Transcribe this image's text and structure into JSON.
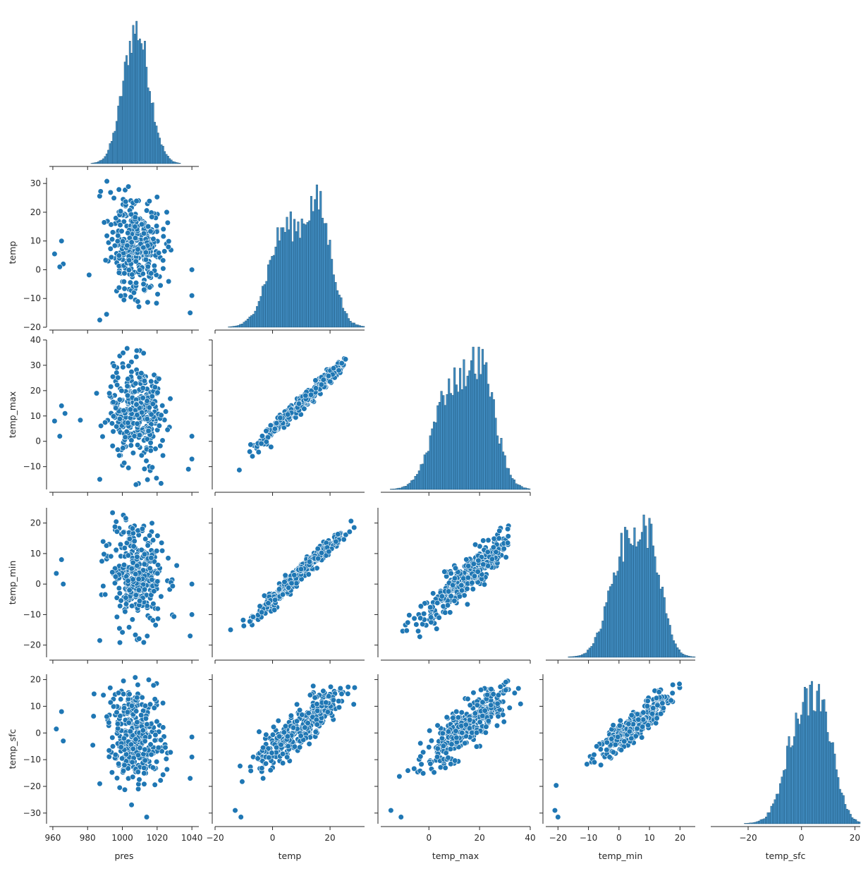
{
  "chart_data": {
    "type": "pairplot",
    "layout": "lower-triangle (corner)",
    "variables": [
      "pres",
      "temp",
      "temp_max",
      "temp_min",
      "temp_sfc"
    ],
    "color": "#1f77b4",
    "diagonal": "histogram",
    "offdiagonal": "scatter",
    "axes": {
      "pres": {
        "range": [
          958,
          1044
        ],
        "ticks": [
          960,
          980,
          1000,
          1020,
          1040
        ],
        "label": "pres"
      },
      "temp": {
        "range": [
          -20,
          32
        ],
        "ticks": [
          -20,
          -10,
          0,
          10,
          20,
          30
        ],
        "x_ticks": [
          -20,
          0,
          20
        ],
        "label": "temp"
      },
      "temp_max": {
        "range": [
          -19,
          40
        ],
        "ticks": [
          -10,
          0,
          10,
          20,
          30,
          40
        ],
        "x_ticks": [
          0,
          20,
          40
        ],
        "label": "temp_max"
      },
      "temp_min": {
        "range": [
          -24,
          25
        ],
        "ticks": [
          -20,
          -10,
          0,
          10,
          20
        ],
        "x_ticks": [
          -20,
          -10,
          0,
          10,
          20
        ],
        "label": "temp_min"
      },
      "temp_sfc": {
        "range": [
          -34,
          22
        ],
        "ticks": [
          -30,
          -20,
          -10,
          0,
          10,
          20
        ],
        "x_ticks": [
          -20,
          0,
          20
        ],
        "label": "temp_sfc"
      }
    },
    "distributions": {
      "pres": {
        "components": [
          {
            "mean": 1008,
            "sd": 7.5,
            "weight": 1
          }
        ],
        "bins": 90
      },
      "temp": {
        "components": [
          {
            "mean": 4,
            "sd": 5.5,
            "weight": 0.45
          },
          {
            "mean": 16,
            "sd": 4.5,
            "weight": 0.45
          },
          {
            "mean": 10,
            "sd": 9,
            "weight": 0.1
          }
        ],
        "bins": 80
      },
      "temp_max": {
        "components": [
          {
            "mean": 8,
            "sd": 6.5,
            "weight": 0.45
          },
          {
            "mean": 21,
            "sd": 5.5,
            "weight": 0.45
          },
          {
            "mean": 14,
            "sd": 10,
            "weight": 0.1
          }
        ],
        "bins": 80
      },
      "temp_min": {
        "components": [
          {
            "mean": 1,
            "sd": 4.5,
            "weight": 0.45
          },
          {
            "mean": 10,
            "sd": 4,
            "weight": 0.45
          },
          {
            "mean": 4,
            "sd": 8,
            "weight": 0.1
          }
        ],
        "bins": 80
      },
      "temp_sfc": {
        "components": [
          {
            "mean": -1,
            "sd": 5,
            "weight": 0.4
          },
          {
            "mean": 8,
            "sd": 4.5,
            "weight": 0.4
          },
          {
            "mean": 2,
            "sd": 8,
            "weight": 0.2
          }
        ],
        "bins": 85
      }
    },
    "relations": [
      {
        "x": "pres",
        "y": "temp",
        "center_x": 1008,
        "center_y": 8,
        "spread_x": 10,
        "spread_y": 9,
        "slope": -0.15
      },
      {
        "x": "pres",
        "y": "temp_max",
        "center_x": 1008,
        "center_y": 12,
        "spread_x": 10,
        "spread_y": 10,
        "slope": -0.15
      },
      {
        "x": "pres",
        "y": "temp_min",
        "center_x": 1008,
        "center_y": 3,
        "spread_x": 10,
        "spread_y": 8,
        "slope": -0.2
      },
      {
        "x": "pres",
        "y": "temp_sfc",
        "center_x": 1008,
        "center_y": -1,
        "spread_x": 10,
        "spread_y": 9,
        "slope": -0.2
      },
      {
        "x": "temp",
        "y": "temp_max",
        "intercept": 4,
        "slope": 1.1,
        "noise": 1.5
      },
      {
        "x": "temp",
        "y": "temp_min",
        "intercept": -5,
        "slope": 0.9,
        "noise": 1.5
      },
      {
        "x": "temp",
        "y": "temp_sfc",
        "intercept": -6,
        "slope": 0.85,
        "noise": 3.5
      },
      {
        "x": "temp_max",
        "y": "temp_min",
        "intercept": -9,
        "slope": 0.75,
        "noise": 3
      },
      {
        "x": "temp_max",
        "y": "temp_sfc",
        "intercept": -9,
        "slope": 0.75,
        "noise": 4
      },
      {
        "x": "temp_min",
        "y": "temp_sfc",
        "intercept": -2,
        "slope": 0.95,
        "noise": 2.5
      }
    ],
    "notable_points": [
      {
        "x": "pres",
        "y": "temp",
        "points": [
          [
            961,
            5.5
          ],
          [
            965,
            10
          ],
          [
            966,
            2
          ],
          [
            964,
            1
          ],
          [
            987,
            -17.5
          ],
          [
            1040,
            0
          ],
          [
            1040,
            -9
          ],
          [
            1039,
            -15
          ]
        ]
      },
      {
        "x": "pres",
        "y": "temp_max",
        "points": [
          [
            961,
            8
          ],
          [
            965,
            14
          ],
          [
            967,
            11
          ],
          [
            964,
            2
          ],
          [
            987,
            -15
          ],
          [
            1040,
            2
          ],
          [
            1040,
            -7
          ],
          [
            1038,
            -11
          ]
        ]
      },
      {
        "x": "pres",
        "y": "temp_min",
        "points": [
          [
            962,
            3.5
          ],
          [
            965,
            8
          ],
          [
            966,
            0
          ],
          [
            987,
            -18.5
          ],
          [
            1040,
            0
          ],
          [
            1040,
            -10
          ],
          [
            1039,
            -17
          ]
        ]
      },
      {
        "x": "pres",
        "y": "temp_sfc",
        "points": [
          [
            962,
            1.5
          ],
          [
            965,
            8
          ],
          [
            966,
            -3
          ],
          [
            987,
            -19
          ],
          [
            1014,
            -31.5
          ],
          [
            1040,
            -1.5
          ],
          [
            1040,
            -9
          ],
          [
            1039,
            -17
          ]
        ]
      },
      {
        "x": "temp",
        "y": "temp_sfc",
        "points": [
          [
            -13,
            -29
          ],
          [
            -11,
            -31.5
          ]
        ]
      },
      {
        "x": "temp_max",
        "y": "temp_sfc",
        "points": [
          [
            -15,
            -29
          ],
          [
            -11,
            -31.5
          ]
        ]
      },
      {
        "x": "temp_min",
        "y": "temp_sfc",
        "points": [
          [
            -21,
            -29
          ],
          [
            -20,
            -31.5
          ]
        ]
      }
    ]
  }
}
